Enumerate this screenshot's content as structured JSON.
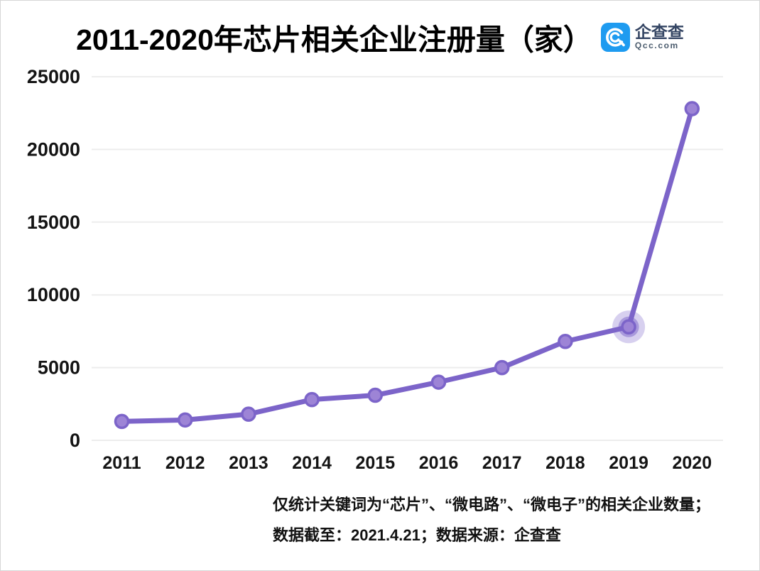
{
  "header": {
    "title": "2011-2020年芯片相关企业注册量（家）",
    "logo": {
      "name": "企查查",
      "domain": "Qcc.com",
      "brand_color": "#1e9bf0"
    }
  },
  "footnotes": [
    "仅统计关键词为“芯片”、“微电路”、“微电子”的相关企业数量；",
    "数据截至：2021.4.21；数据来源：企查查"
  ],
  "chart_data": {
    "type": "line",
    "title": "2011-2020年芯片相关企业注册量（家）",
    "categories": [
      "2011",
      "2012",
      "2013",
      "2014",
      "2015",
      "2016",
      "2017",
      "2018",
      "2019",
      "2020"
    ],
    "values": [
      1300,
      1400,
      1800,
      2800,
      3100,
      4000,
      5000,
      6800,
      7800,
      22800
    ],
    "highlighted_point": {
      "category": "2019",
      "index": 8
    },
    "xlabel": "",
    "ylabel": "",
    "ylim": [
      0,
      25000
    ],
    "yticks": [
      0,
      5000,
      10000,
      15000,
      20000,
      25000
    ],
    "grid": true,
    "legend": "none",
    "colors": {
      "line": "#7c64c9",
      "marker_fill": "#9d84d6",
      "highlight_halo": "#7c64c9",
      "gridline": "#ededed"
    }
  }
}
